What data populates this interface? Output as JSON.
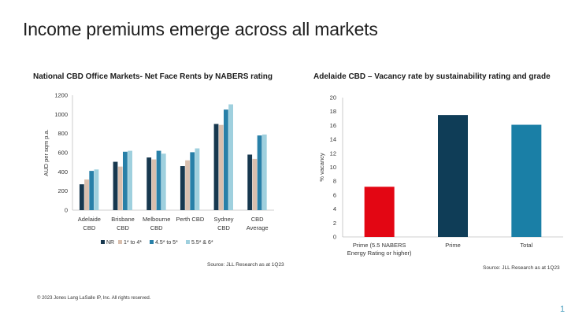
{
  "slide": {
    "title": "Income premiums emerge across all markets",
    "footer": "© 2023 Jones Lang LaSalle IP, Inc. All rights reserved.",
    "page_number": "1"
  },
  "chart_data": [
    {
      "type": "bar",
      "title": "National CBD Office Markets- Net Face Rents by NABERS rating",
      "ylabel": "AUD per sqm p.a.",
      "xlabel": "",
      "ylim": [
        0,
        1200
      ],
      "yticks": [
        0,
        200,
        400,
        600,
        800,
        1000,
        1200
      ],
      "categories": [
        [
          "Adelaide",
          "CBD"
        ],
        [
          "Brisbane",
          "CBD"
        ],
        [
          "Melbourne",
          "CBD"
        ],
        [
          "Perth CBD"
        ],
        [
          "Sydney",
          "CBD"
        ],
        [
          "CBD",
          "Average"
        ]
      ],
      "series": [
        {
          "name": "NR",
          "color": "#17384f",
          "values": [
            270,
            505,
            550,
            460,
            900,
            580
          ]
        },
        {
          "name": "1* to 4*",
          "color": "#d9bfae",
          "values": [
            320,
            455,
            530,
            520,
            890,
            535
          ]
        },
        {
          "name": "4.5* to 5*",
          "color": "#2880a8",
          "values": [
            410,
            610,
            620,
            605,
            1050,
            780
          ]
        },
        {
          "name": "5.5* & 6*",
          "color": "#9fd0de",
          "values": [
            425,
            620,
            590,
            645,
            1105,
            790
          ]
        }
      ],
      "legend_position": "bottom",
      "grid": false,
      "source": "Source: JLL Research as at 1Q23"
    },
    {
      "type": "bar",
      "title": "Adelaide CBD – Vacancy rate by sustainability rating and grade",
      "ylabel": "% vacancy",
      "xlabel": "",
      "ylim": [
        0,
        20
      ],
      "yticks": [
        0,
        2,
        4,
        6,
        8,
        10,
        12,
        14,
        16,
        18,
        20
      ],
      "categories": [
        [
          "Prime (5.5 NABERS",
          "Energy Rating or higher)"
        ],
        [
          "Prime"
        ],
        [
          "Total"
        ]
      ],
      "values": [
        7.2,
        17.5,
        16.1
      ],
      "colors": [
        "#e30613",
        "#0f3d57",
        "#1a7fa6"
      ],
      "grid": false,
      "source": "Source: JLL Research as at 1Q23"
    }
  ]
}
